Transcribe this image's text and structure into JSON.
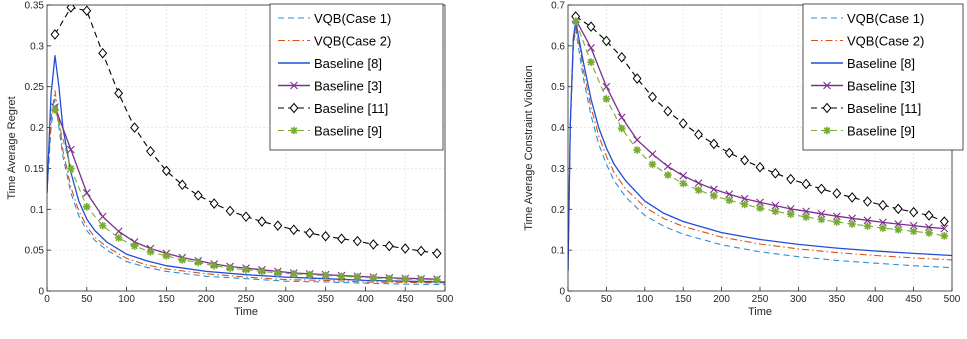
{
  "chart_data": [
    {
      "type": "line",
      "xlabel": "Time",
      "ylabel": "Time Average Regret",
      "xlim": [
        0,
        500
      ],
      "ylim": [
        0,
        0.35
      ],
      "xticks": [
        0,
        50,
        100,
        150,
        200,
        250,
        300,
        350,
        400,
        450,
        500
      ],
      "yticks": [
        0,
        0.05,
        0.1,
        0.15,
        0.2,
        0.25,
        0.3,
        0.35
      ],
      "ytick_labels": [
        "0",
        "0.05",
        "0.1",
        "0.15",
        "0.2",
        "0.25",
        "0.3",
        "0.35"
      ],
      "grid": true,
      "legend_position": "top-right",
      "series": [
        {
          "name": "VQB(Case 1)",
          "color": "#2e8fd6",
          "dash": "dashed",
          "marker": "none",
          "x": [
            0,
            5,
            10,
            15,
            20,
            30,
            40,
            50,
            60,
            75,
            100,
            125,
            150,
            200,
            250,
            300,
            350,
            400,
            450,
            500
          ],
          "y": [
            0.12,
            0.2,
            0.235,
            0.2,
            0.165,
            0.12,
            0.092,
            0.074,
            0.062,
            0.05,
            0.036,
            0.029,
            0.024,
            0.018,
            0.015,
            0.012,
            0.011,
            0.0095,
            0.0085,
            0.008
          ]
        },
        {
          "name": "VQB(Case 2)",
          "color": "#d95319",
          "dash": "dashdot",
          "marker": "none",
          "x": [
            0,
            5,
            10,
            15,
            20,
            30,
            40,
            50,
            60,
            75,
            100,
            125,
            150,
            200,
            250,
            300,
            350,
            400,
            450,
            500
          ],
          "y": [
            0.12,
            0.21,
            0.245,
            0.21,
            0.172,
            0.127,
            0.098,
            0.079,
            0.066,
            0.054,
            0.04,
            0.032,
            0.027,
            0.021,
            0.017,
            0.014,
            0.013,
            0.011,
            0.0105,
            0.01
          ]
        },
        {
          "name": "Baseline [8]",
          "color": "#1f4fd6",
          "dash": "solid",
          "marker": "none",
          "x": [
            0,
            5,
            10,
            15,
            20,
            30,
            40,
            50,
            60,
            75,
            100,
            125,
            150,
            200,
            250,
            300,
            350,
            400,
            450,
            500
          ],
          "y": [
            0.12,
            0.24,
            0.288,
            0.25,
            0.2,
            0.145,
            0.11,
            0.088,
            0.074,
            0.06,
            0.045,
            0.037,
            0.031,
            0.024,
            0.02,
            0.017,
            0.015,
            0.013,
            0.012,
            0.011
          ]
        },
        {
          "name": "Baseline [3]",
          "color": "#7e2f8e",
          "dash": "solid",
          "marker": "x",
          "x": [
            10,
            30,
            50,
            70,
            90,
            110,
            130,
            150,
            170,
            190,
            210,
            230,
            250,
            270,
            290,
            310,
            330,
            350,
            370,
            390,
            410,
            430,
            450,
            470,
            490
          ],
          "y": [
            0.225,
            0.173,
            0.12,
            0.091,
            0.073,
            0.06,
            0.052,
            0.046,
            0.041,
            0.037,
            0.033,
            0.03,
            0.028,
            0.026,
            0.024,
            0.022,
            0.021,
            0.02,
            0.019,
            0.018,
            0.017,
            0.016,
            0.0155,
            0.015,
            0.0145
          ]
        },
        {
          "name": "Baseline [11]",
          "color": "#000000",
          "dash": "dashed",
          "marker": "diamond",
          "x": [
            10,
            30,
            50,
            70,
            90,
            110,
            130,
            150,
            170,
            190,
            210,
            230,
            250,
            270,
            290,
            310,
            330,
            350,
            370,
            390,
            410,
            430,
            450,
            470,
            490
          ],
          "y": [
            0.314,
            0.347,
            0.343,
            0.291,
            0.242,
            0.2,
            0.171,
            0.147,
            0.13,
            0.117,
            0.107,
            0.098,
            0.091,
            0.085,
            0.08,
            0.075,
            0.071,
            0.067,
            0.064,
            0.061,
            0.057,
            0.055,
            0.052,
            0.049,
            0.046
          ]
        },
        {
          "name": "Baseline [9]",
          "color": "#77ac30",
          "dash": "dashed",
          "marker": "star",
          "x": [
            10,
            30,
            50,
            70,
            90,
            110,
            130,
            150,
            170,
            190,
            210,
            230,
            250,
            270,
            290,
            310,
            330,
            350,
            370,
            390,
            410,
            430,
            450,
            470,
            490
          ],
          "y": [
            0.222,
            0.15,
            0.103,
            0.08,
            0.065,
            0.055,
            0.048,
            0.043,
            0.038,
            0.035,
            0.031,
            0.028,
            0.026,
            0.024,
            0.022,
            0.021,
            0.02,
            0.019,
            0.018,
            0.017,
            0.016,
            0.015,
            0.0145,
            0.014,
            0.0135
          ]
        }
      ]
    },
    {
      "type": "line",
      "xlabel": "Time",
      "ylabel": "Time Average Constraint Violation",
      "xlim": [
        0,
        500
      ],
      "ylim": [
        0,
        0.7
      ],
      "xticks": [
        0,
        50,
        100,
        150,
        200,
        250,
        300,
        350,
        400,
        450,
        500
      ],
      "yticks": [
        0,
        0.1,
        0.2,
        0.3,
        0.4,
        0.5,
        0.6,
        0.7
      ],
      "ytick_labels": [
        "0",
        "0.1",
        "0.2",
        "0.3",
        "0.4",
        "0.5",
        "0.6",
        "0.7"
      ],
      "grid": true,
      "legend_position": "top-right",
      "series": [
        {
          "name": "VQB(Case 1)",
          "color": "#2e8fd6",
          "dash": "dashed",
          "marker": "none",
          "x": [
            0,
            3,
            7,
            10,
            15,
            20,
            30,
            40,
            50,
            60,
            75,
            100,
            125,
            150,
            200,
            250,
            300,
            350,
            400,
            450,
            500
          ],
          "y": [
            0.05,
            0.4,
            0.6,
            0.64,
            0.58,
            0.52,
            0.43,
            0.36,
            0.31,
            0.27,
            0.23,
            0.185,
            0.158,
            0.139,
            0.113,
            0.096,
            0.084,
            0.075,
            0.068,
            0.062,
            0.057
          ]
        },
        {
          "name": "VQB(Case 2)",
          "color": "#d95319",
          "dash": "dashdot",
          "marker": "none",
          "x": [
            0,
            3,
            7,
            10,
            15,
            20,
            30,
            40,
            50,
            60,
            75,
            100,
            125,
            150,
            200,
            250,
            300,
            350,
            400,
            450,
            500
          ],
          "y": [
            0.05,
            0.4,
            0.61,
            0.65,
            0.6,
            0.54,
            0.45,
            0.38,
            0.33,
            0.29,
            0.25,
            0.205,
            0.177,
            0.158,
            0.132,
            0.115,
            0.103,
            0.094,
            0.087,
            0.081,
            0.076
          ]
        },
        {
          "name": "Baseline [8]",
          "color": "#1f4fd6",
          "dash": "solid",
          "marker": "none",
          "x": [
            0,
            3,
            7,
            10,
            15,
            20,
            30,
            40,
            50,
            60,
            75,
            100,
            125,
            150,
            200,
            250,
            300,
            350,
            400,
            450,
            500
          ],
          "y": [
            0.05,
            0.41,
            0.62,
            0.66,
            0.61,
            0.56,
            0.47,
            0.4,
            0.35,
            0.31,
            0.27,
            0.22,
            0.19,
            0.17,
            0.143,
            0.126,
            0.114,
            0.105,
            0.098,
            0.092,
            0.087
          ]
        },
        {
          "name": "Baseline [3]",
          "color": "#7e2f8e",
          "dash": "solid",
          "marker": "x",
          "x": [
            10,
            30,
            50,
            70,
            90,
            110,
            130,
            150,
            170,
            190,
            210,
            230,
            250,
            270,
            290,
            310,
            330,
            350,
            370,
            390,
            410,
            430,
            450,
            470,
            490
          ],
          "y": [
            0.665,
            0.595,
            0.5,
            0.425,
            0.37,
            0.335,
            0.305,
            0.282,
            0.264,
            0.249,
            0.237,
            0.226,
            0.217,
            0.209,
            0.201,
            0.195,
            0.189,
            0.183,
            0.178,
            0.173,
            0.168,
            0.164,
            0.16,
            0.156,
            0.153
          ]
        },
        {
          "name": "Baseline [11]",
          "color": "#000000",
          "dash": "dashed",
          "marker": "diamond",
          "x": [
            10,
            30,
            50,
            70,
            90,
            110,
            130,
            150,
            170,
            190,
            210,
            230,
            250,
            270,
            290,
            310,
            330,
            350,
            370,
            390,
            410,
            430,
            450,
            470,
            490
          ],
          "y": [
            0.672,
            0.647,
            0.612,
            0.572,
            0.52,
            0.475,
            0.44,
            0.41,
            0.383,
            0.36,
            0.338,
            0.32,
            0.303,
            0.288,
            0.274,
            0.262,
            0.25,
            0.239,
            0.229,
            0.219,
            0.21,
            0.201,
            0.193,
            0.185,
            0.17
          ]
        },
        {
          "name": "Baseline [9]",
          "color": "#77ac30",
          "dash": "dashed",
          "marker": "star",
          "x": [
            10,
            30,
            50,
            70,
            90,
            110,
            130,
            150,
            170,
            190,
            210,
            230,
            250,
            270,
            290,
            310,
            330,
            350,
            370,
            390,
            410,
            430,
            450,
            470,
            490
          ],
          "y": [
            0.66,
            0.56,
            0.47,
            0.398,
            0.345,
            0.31,
            0.284,
            0.263,
            0.247,
            0.233,
            0.222,
            0.212,
            0.203,
            0.195,
            0.188,
            0.181,
            0.175,
            0.169,
            0.164,
            0.159,
            0.154,
            0.15,
            0.146,
            0.142,
            0.135
          ]
        }
      ]
    }
  ]
}
